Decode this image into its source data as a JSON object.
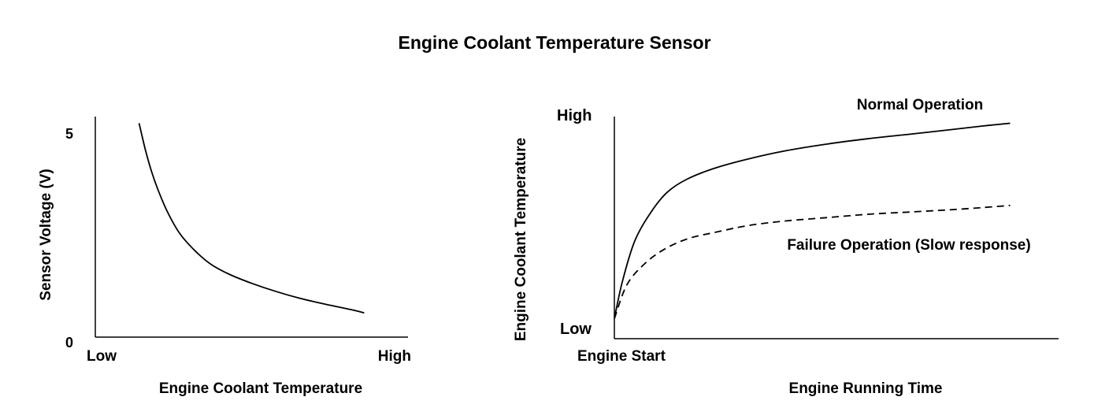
{
  "title": "Engine Coolant Temperature Sensor",
  "chart_data": [
    {
      "type": "line",
      "xlabel": "Engine Coolant Temperature",
      "ylabel": "Sensor Voltage (V)",
      "x_tick_labels": [
        "Low",
        "High"
      ],
      "y_tick_labels": [
        "0",
        "5"
      ],
      "xlim": [
        0,
        1
      ],
      "ylim": [
        0,
        5
      ],
      "grid": false,
      "series": [
        {
          "x": [
            0.14,
            0.16,
            0.18,
            0.2,
            0.23,
            0.27,
            0.32,
            0.37,
            0.43,
            0.5,
            0.58,
            0.66,
            0.74,
            0.82,
            0.86
          ],
          "y": [
            4.85,
            4.25,
            3.75,
            3.35,
            2.85,
            2.35,
            1.95,
            1.65,
            1.42,
            1.22,
            1.03,
            0.87,
            0.74,
            0.62,
            0.55
          ]
        }
      ]
    },
    {
      "type": "line",
      "xlabel": "Engine Running Time",
      "ylabel": "Engine Coolant Temperature",
      "x_tick_labels": [
        "Engine Start"
      ],
      "y_tick_labels": [
        "Low",
        "High"
      ],
      "xlim": [
        0,
        1
      ],
      "ylim": [
        0,
        1
      ],
      "grid": false,
      "series": [
        {
          "name": "Normal Operation",
          "style": "solid",
          "x": [
            0.0,
            0.02,
            0.05,
            0.09,
            0.13,
            0.18,
            0.25,
            0.33,
            0.42,
            0.52,
            0.62,
            0.72,
            0.82,
            0.9,
            0.97
          ],
          "y": [
            0.09,
            0.26,
            0.44,
            0.57,
            0.66,
            0.72,
            0.77,
            0.81,
            0.846,
            0.876,
            0.9,
            0.92,
            0.94,
            0.957,
            0.97
          ]
        },
        {
          "name": "Failure Operation (Slow response)",
          "style": "dashed",
          "x": [
            0.0,
            0.03,
            0.07,
            0.12,
            0.18,
            0.25,
            0.33,
            0.42,
            0.52,
            0.62,
            0.72,
            0.82,
            0.9,
            0.97
          ],
          "y": [
            0.09,
            0.24,
            0.33,
            0.4,
            0.45,
            0.48,
            0.51,
            0.53,
            0.545,
            0.56,
            0.57,
            0.58,
            0.59,
            0.6
          ]
        }
      ]
    }
  ]
}
